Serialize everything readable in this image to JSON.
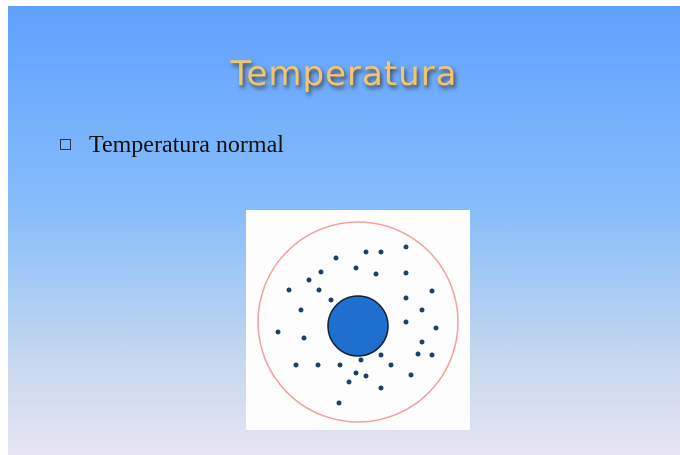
{
  "slide": {
    "title": "Temperatura",
    "bullets": [
      "Temperatura normal"
    ]
  }
}
